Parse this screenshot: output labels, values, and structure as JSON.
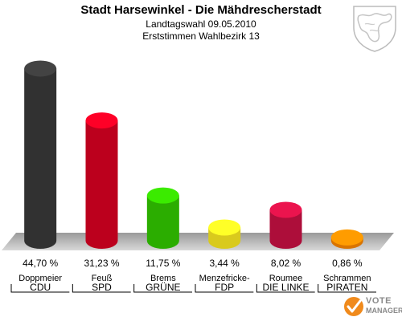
{
  "header": {
    "title": "Stadt Harsewinkel - Die Mähdrescherstadt",
    "subtitle1": "Landtagswahl 09.05.2010",
    "subtitle2": "Erststimmen Wahlbezirk 13"
  },
  "chart_data": {
    "type": "bar",
    "title": "Stadt Harsewinkel - Die Mähdrescherstadt",
    "subtitle": "Landtagswahl 09.05.2010 / Erststimmen Wahlbezirk 13",
    "categories": [
      "CDU",
      "SPD",
      "GRÜNE",
      "FDP",
      "DIE LINKE",
      "PIRATEN"
    ],
    "candidates": [
      "Doppmeier",
      "Feuß",
      "Brems",
      "Menzefricke-",
      "Roumee",
      "Schrammen"
    ],
    "values": [
      44.7,
      31.23,
      11.75,
      3.44,
      8.02,
      0.86
    ],
    "value_labels": [
      "44,70 %",
      "31,23 %",
      "11,75 %",
      "3,44 %",
      "8,02 %",
      "0,86 %"
    ],
    "colors": [
      "#3a3a3a",
      "#dd0022",
      "#33cc00",
      "#ffee22",
      "#cc1144",
      "#ff8800"
    ],
    "ylim": [
      0,
      50
    ],
    "grid": false,
    "legend": "none"
  },
  "branding": {
    "line1": "VOTE",
    "line2": "MANAGER"
  }
}
